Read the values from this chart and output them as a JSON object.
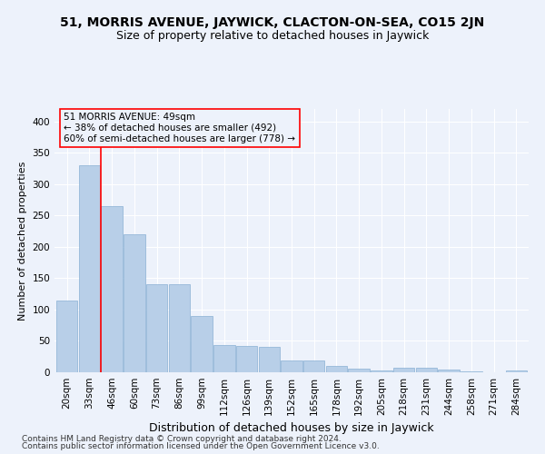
{
  "title": "51, MORRIS AVENUE, JAYWICK, CLACTON-ON-SEA, CO15 2JN",
  "subtitle": "Size of property relative to detached houses in Jaywick",
  "xlabel": "Distribution of detached houses by size in Jaywick",
  "ylabel": "Number of detached properties",
  "categories": [
    "20sqm",
    "33sqm",
    "46sqm",
    "60sqm",
    "73sqm",
    "86sqm",
    "99sqm",
    "112sqm",
    "126sqm",
    "139sqm",
    "152sqm",
    "165sqm",
    "178sqm",
    "192sqm",
    "205sqm",
    "218sqm",
    "231sqm",
    "244sqm",
    "258sqm",
    "271sqm",
    "284sqm"
  ],
  "values": [
    115,
    330,
    265,
    220,
    140,
    140,
    90,
    44,
    42,
    40,
    19,
    19,
    10,
    6,
    3,
    7,
    7,
    4,
    2,
    0,
    3
  ],
  "bar_color": "#b8cfe8",
  "bar_edge_color": "#8ab0d4",
  "red_line_x": 1.5,
  "annotation_title": "51 MORRIS AVENUE: 49sqm",
  "annotation_line1": "← 38% of detached houses are smaller (492)",
  "annotation_line2": "60% of semi-detached houses are larger (778) →",
  "footnote1": "Contains HM Land Registry data © Crown copyright and database right 2024.",
  "footnote2": "Contains public sector information licensed under the Open Government Licence v3.0.",
  "ylim": [
    0,
    420
  ],
  "yticks": [
    0,
    50,
    100,
    150,
    200,
    250,
    300,
    350,
    400
  ],
  "bg_color": "#edf2fb",
  "grid_color": "#ffffff",
  "title_fontsize": 10,
  "subtitle_fontsize": 9,
  "ylabel_fontsize": 8,
  "xlabel_fontsize": 9,
  "tick_fontsize": 7.5,
  "annot_fontsize": 7.5,
  "footnote_fontsize": 6.5
}
